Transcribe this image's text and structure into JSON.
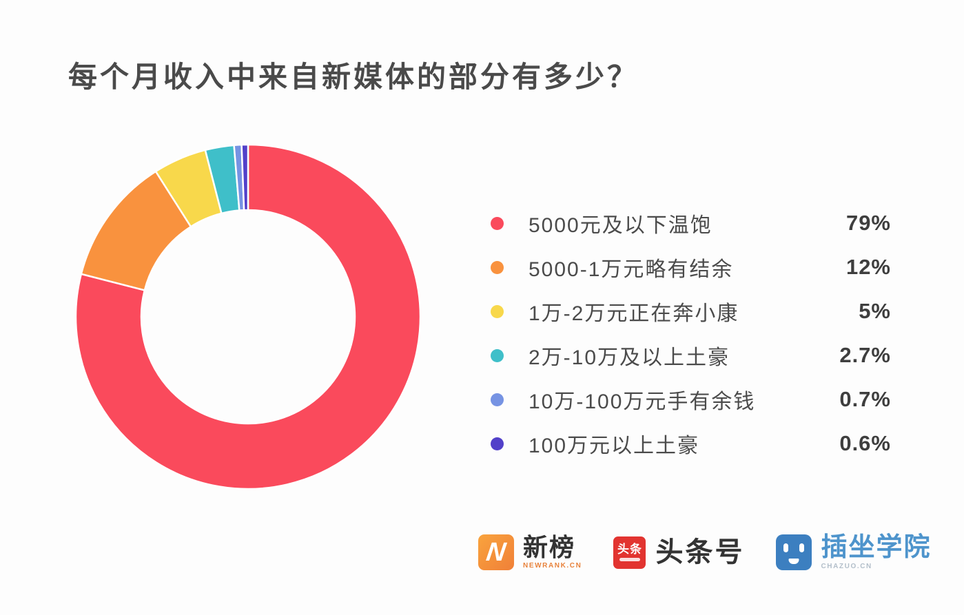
{
  "title": "每个月收入中来自新媒体的部分有多少？",
  "chart_data": {
    "type": "pie",
    "subtype": "donut",
    "title": "每个月收入中来自新媒体的部分有多少？",
    "legend_position": "right",
    "start_angle_deg": 0,
    "direction": "clockwise",
    "inner_radius_ratio": 0.62,
    "slice_gap_color": "#ffffff",
    "items": [
      {
        "label": "5000元及以下温饱",
        "value": 79,
        "value_label": "79%",
        "color": "#fa4a5c"
      },
      {
        "label": "5000-1万元略有结余",
        "value": 12,
        "value_label": "12%",
        "color": "#f9923e"
      },
      {
        "label": "1万-2万元正在奔小康",
        "value": 5,
        "value_label": "5%",
        "color": "#f8d84b"
      },
      {
        "label": "2万-10万及以上土豪",
        "value": 2.7,
        "value_label": "2.7%",
        "color": "#3fbfc9"
      },
      {
        "label": "10万-100万元手有余钱",
        "value": 0.7,
        "value_label": "0.7%",
        "color": "#7693e3"
      },
      {
        "label": "100万元以上土豪",
        "value": 0.6,
        "value_label": "0.6%",
        "color": "#5240c9"
      }
    ]
  },
  "footer": {
    "newrank": {
      "name": "新榜",
      "domain": "NEWRANK.CN",
      "icon_letter": "N",
      "brand_color": "#f5913e"
    },
    "toutiao": {
      "name": "头条号",
      "badge_text": "头条",
      "brand_color": "#e23430"
    },
    "chazuo": {
      "name": "插坐学院",
      "domain": "CHAZUO.CN",
      "brand_color": "#3c7fc0"
    }
  }
}
